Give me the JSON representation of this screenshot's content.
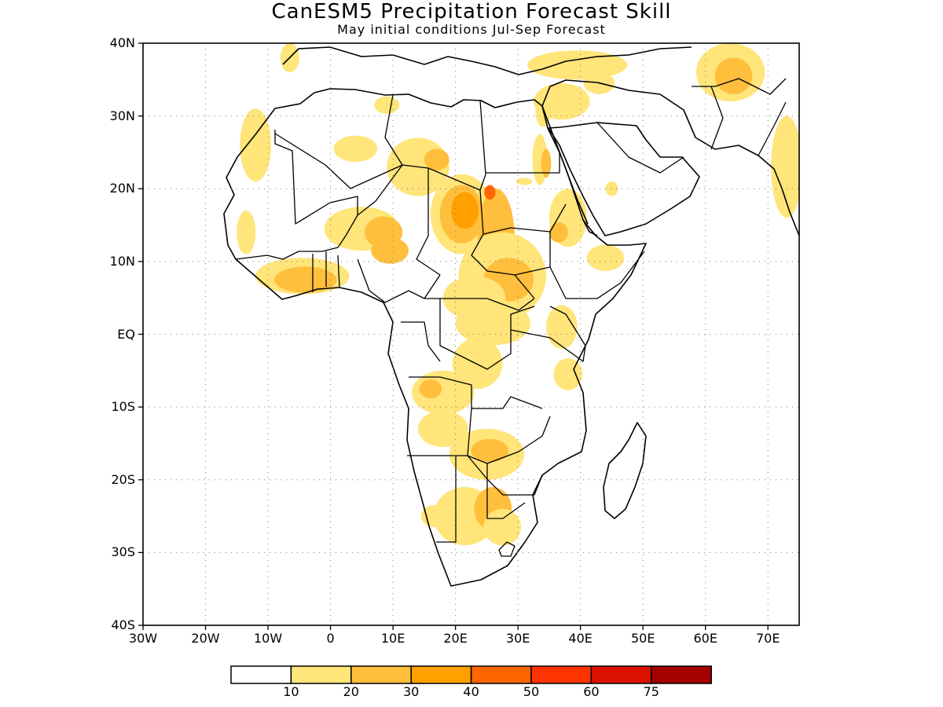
{
  "title": "CanESM5 Precipitation Forecast Skill",
  "subtitle": "May initial conditions  Jul-Sep Forecast",
  "map": {
    "projection": "latlon",
    "lon_range": [
      -30,
      75
    ],
    "lat_range": [
      -40,
      40
    ],
    "grid": "dotted",
    "x_ticks": [
      {
        "lon": -30,
        "label": "30W"
      },
      {
        "lon": -20,
        "label": "20W"
      },
      {
        "lon": -10,
        "label": "10W"
      },
      {
        "lon": 0,
        "label": "0"
      },
      {
        "lon": 10,
        "label": "10E"
      },
      {
        "lon": 20,
        "label": "20E"
      },
      {
        "lon": 30,
        "label": "30E"
      },
      {
        "lon": 40,
        "label": "40E"
      },
      {
        "lon": 50,
        "label": "50E"
      },
      {
        "lon": 60,
        "label": "60E"
      },
      {
        "lon": 70,
        "label": "70E"
      }
    ],
    "y_ticks": [
      {
        "lat": 40,
        "label": "40N"
      },
      {
        "lat": 30,
        "label": "30N"
      },
      {
        "lat": 20,
        "label": "20N"
      },
      {
        "lat": 10,
        "label": "10N"
      },
      {
        "lat": 0,
        "label": "EQ"
      },
      {
        "lat": -10,
        "label": "10S"
      },
      {
        "lat": -20,
        "label": "20S"
      },
      {
        "lat": -30,
        "label": "30S"
      },
      {
        "lat": -40,
        "label": "40S"
      }
    ]
  },
  "colorbar": {
    "labels": [
      "10",
      "20",
      "30",
      "40",
      "50",
      "60",
      "75"
    ],
    "colors": [
      "#ffffff",
      "#ffe57a",
      "#ffbf3c",
      "#ff9f00",
      "#ff6600",
      "#ff3300",
      "#dd1100",
      "#a50000"
    ]
  },
  "skill_patches": [
    {
      "lon": -12,
      "lat": 26,
      "rx": 2.5,
      "ry": 5,
      "level": 1
    },
    {
      "lon": 4,
      "lat": 25.5,
      "rx": 3.5,
      "ry": 1.8,
      "level": 1
    },
    {
      "lon": 14,
      "lat": 23,
      "rx": 5,
      "ry": 4,
      "level": 1
    },
    {
      "lon": 17,
      "lat": 24,
      "rx": 2,
      "ry": 1.5,
      "level": 2
    },
    {
      "lon": 9,
      "lat": 31.5,
      "rx": 2,
      "ry": 1.2,
      "level": 1
    },
    {
      "lon": 21,
      "lat": 16.5,
      "rx": 5,
      "ry": 5.5,
      "level": 1
    },
    {
      "lon": 21,
      "lat": 16.5,
      "rx": 3.5,
      "ry": 4,
      "level": 2
    },
    {
      "lon": 21.5,
      "lat": 17,
      "rx": 2.2,
      "ry": 2.5,
      "level": 3
    },
    {
      "lon": 26.5,
      "lat": 13,
      "rx": 3,
      "ry": 7,
      "level": 2
    },
    {
      "lon": 25.5,
      "lat": 19.5,
      "rx": 0.9,
      "ry": 1,
      "level": 4
    },
    {
      "lon": 5,
      "lat": 14.5,
      "rx": 6,
      "ry": 3,
      "level": 1
    },
    {
      "lon": 8.5,
      "lat": 14,
      "rx": 3,
      "ry": 2.2,
      "level": 2
    },
    {
      "lon": 9.5,
      "lat": 11.5,
      "rx": 3,
      "ry": 1.8,
      "level": 2
    },
    {
      "lon": -4.5,
      "lat": 8,
      "rx": 7.5,
      "ry": 2.5,
      "level": 1
    },
    {
      "lon": -4,
      "lat": 7.5,
      "rx": 5,
      "ry": 1.8,
      "level": 2
    },
    {
      "lon": -13.5,
      "lat": 14,
      "rx": 1.5,
      "ry": 3,
      "level": 1
    },
    {
      "lon": 27.5,
      "lat": 8,
      "rx": 7,
      "ry": 6,
      "level": 1
    },
    {
      "lon": 28.5,
      "lat": 7.5,
      "rx": 4,
      "ry": 3,
      "level": 2
    },
    {
      "lon": 23,
      "lat": 5,
      "rx": 5,
      "ry": 3,
      "level": 1
    },
    {
      "lon": 26,
      "lat": 1.5,
      "rx": 6,
      "ry": 3,
      "level": 1
    },
    {
      "lon": 23.5,
      "lat": -4,
      "rx": 4,
      "ry": 3.5,
      "level": 1
    },
    {
      "lon": 18,
      "lat": -8,
      "rx": 5,
      "ry": 3,
      "level": 1
    },
    {
      "lon": 16,
      "lat": -7.5,
      "rx": 1.8,
      "ry": 1.3,
      "level": 2
    },
    {
      "lon": 37,
      "lat": 1,
      "rx": 2.5,
      "ry": 3,
      "level": 1
    },
    {
      "lon": 38,
      "lat": -5.5,
      "rx": 2.3,
      "ry": 2.2,
      "level": 1
    },
    {
      "lon": 18,
      "lat": -13,
      "rx": 4,
      "ry": 2.5,
      "level": 1
    },
    {
      "lon": 25,
      "lat": -16.5,
      "rx": 6,
      "ry": 3.5,
      "level": 1
    },
    {
      "lon": 25.5,
      "lat": -16,
      "rx": 3,
      "ry": 1.6,
      "level": 2
    },
    {
      "lon": 21.5,
      "lat": -25,
      "rx": 5,
      "ry": 4,
      "level": 1
    },
    {
      "lon": 26,
      "lat": -24,
      "rx": 3,
      "ry": 3,
      "level": 2
    },
    {
      "lon": 27.5,
      "lat": -26.5,
      "rx": 3,
      "ry": 2.5,
      "level": 1
    },
    {
      "lon": 16.5,
      "lat": -25,
      "rx": 2,
      "ry": 1.5,
      "level": 1
    },
    {
      "lon": 38,
      "lat": 16,
      "rx": 3,
      "ry": 4,
      "level": 1
    },
    {
      "lon": 36.5,
      "lat": 14,
      "rx": 1.5,
      "ry": 1.4,
      "level": 2
    },
    {
      "lon": 44,
      "lat": 10.5,
      "rx": 3,
      "ry": 1.8,
      "level": 1
    },
    {
      "lon": 33.5,
      "lat": 24,
      "rx": 1.2,
      "ry": 3.5,
      "level": 1
    },
    {
      "lon": 34.5,
      "lat": 23.5,
      "rx": 0.8,
      "ry": 2,
      "level": 2
    },
    {
      "lon": 31,
      "lat": 21,
      "rx": 1.3,
      "ry": 0.5,
      "level": 1
    },
    {
      "lon": 37,
      "lat": 32,
      "rx": 4.5,
      "ry": 2.5,
      "level": 1
    },
    {
      "lon": 39.5,
      "lat": 37,
      "rx": 8,
      "ry": 2,
      "level": 1
    },
    {
      "lon": 43,
      "lat": 34.5,
      "rx": 2.5,
      "ry": 1.5,
      "level": 1
    },
    {
      "lon": 34,
      "lat": 30.5,
      "rx": 1.2,
      "ry": 2,
      "level": 1
    },
    {
      "lon": 64,
      "lat": 36,
      "rx": 5.5,
      "ry": 4,
      "level": 1
    },
    {
      "lon": 64.5,
      "lat": 35.5,
      "rx": 3,
      "ry": 2.5,
      "level": 2
    },
    {
      "lon": 73,
      "lat": 23,
      "rx": 2.5,
      "ry": 7,
      "level": 1
    },
    {
      "lon": -6.5,
      "lat": 38,
      "rx": 1.5,
      "ry": 2,
      "level": 1
    },
    {
      "lon": 45,
      "lat": 20,
      "rx": 1,
      "ry": 1,
      "level": 1
    }
  ]
}
